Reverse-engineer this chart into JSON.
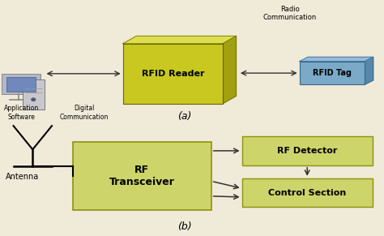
{
  "bg_color": "#f0ead8",
  "reader_face_color": "#c8c820",
  "reader_side_color": "#a0a010",
  "reader_top_color": "#dede50",
  "tag_face_color": "#7aaac8",
  "tag_side_color": "#5588aa",
  "tag_top_color": "#99bbd8",
  "box_yellow": "#cdd46a",
  "box_yellow_edge": "#909010",
  "label_a": "(a)",
  "label_b": "(b)",
  "rfid_reader_label": "RFID Reader",
  "rfid_tag_label": "RFID Tag",
  "app_software_label": "Application\nSoftware",
  "digital_comm_label": "Digital\nCommunication",
  "radio_comm_label": "Radio\nCommunication",
  "antenna_label": "Antenna",
  "rf_transceiver_label": "RF\nTransceiver",
  "rf_detector_label": "RF Detector",
  "control_section_label": "Control Section",
  "arrow_color": "#333333"
}
